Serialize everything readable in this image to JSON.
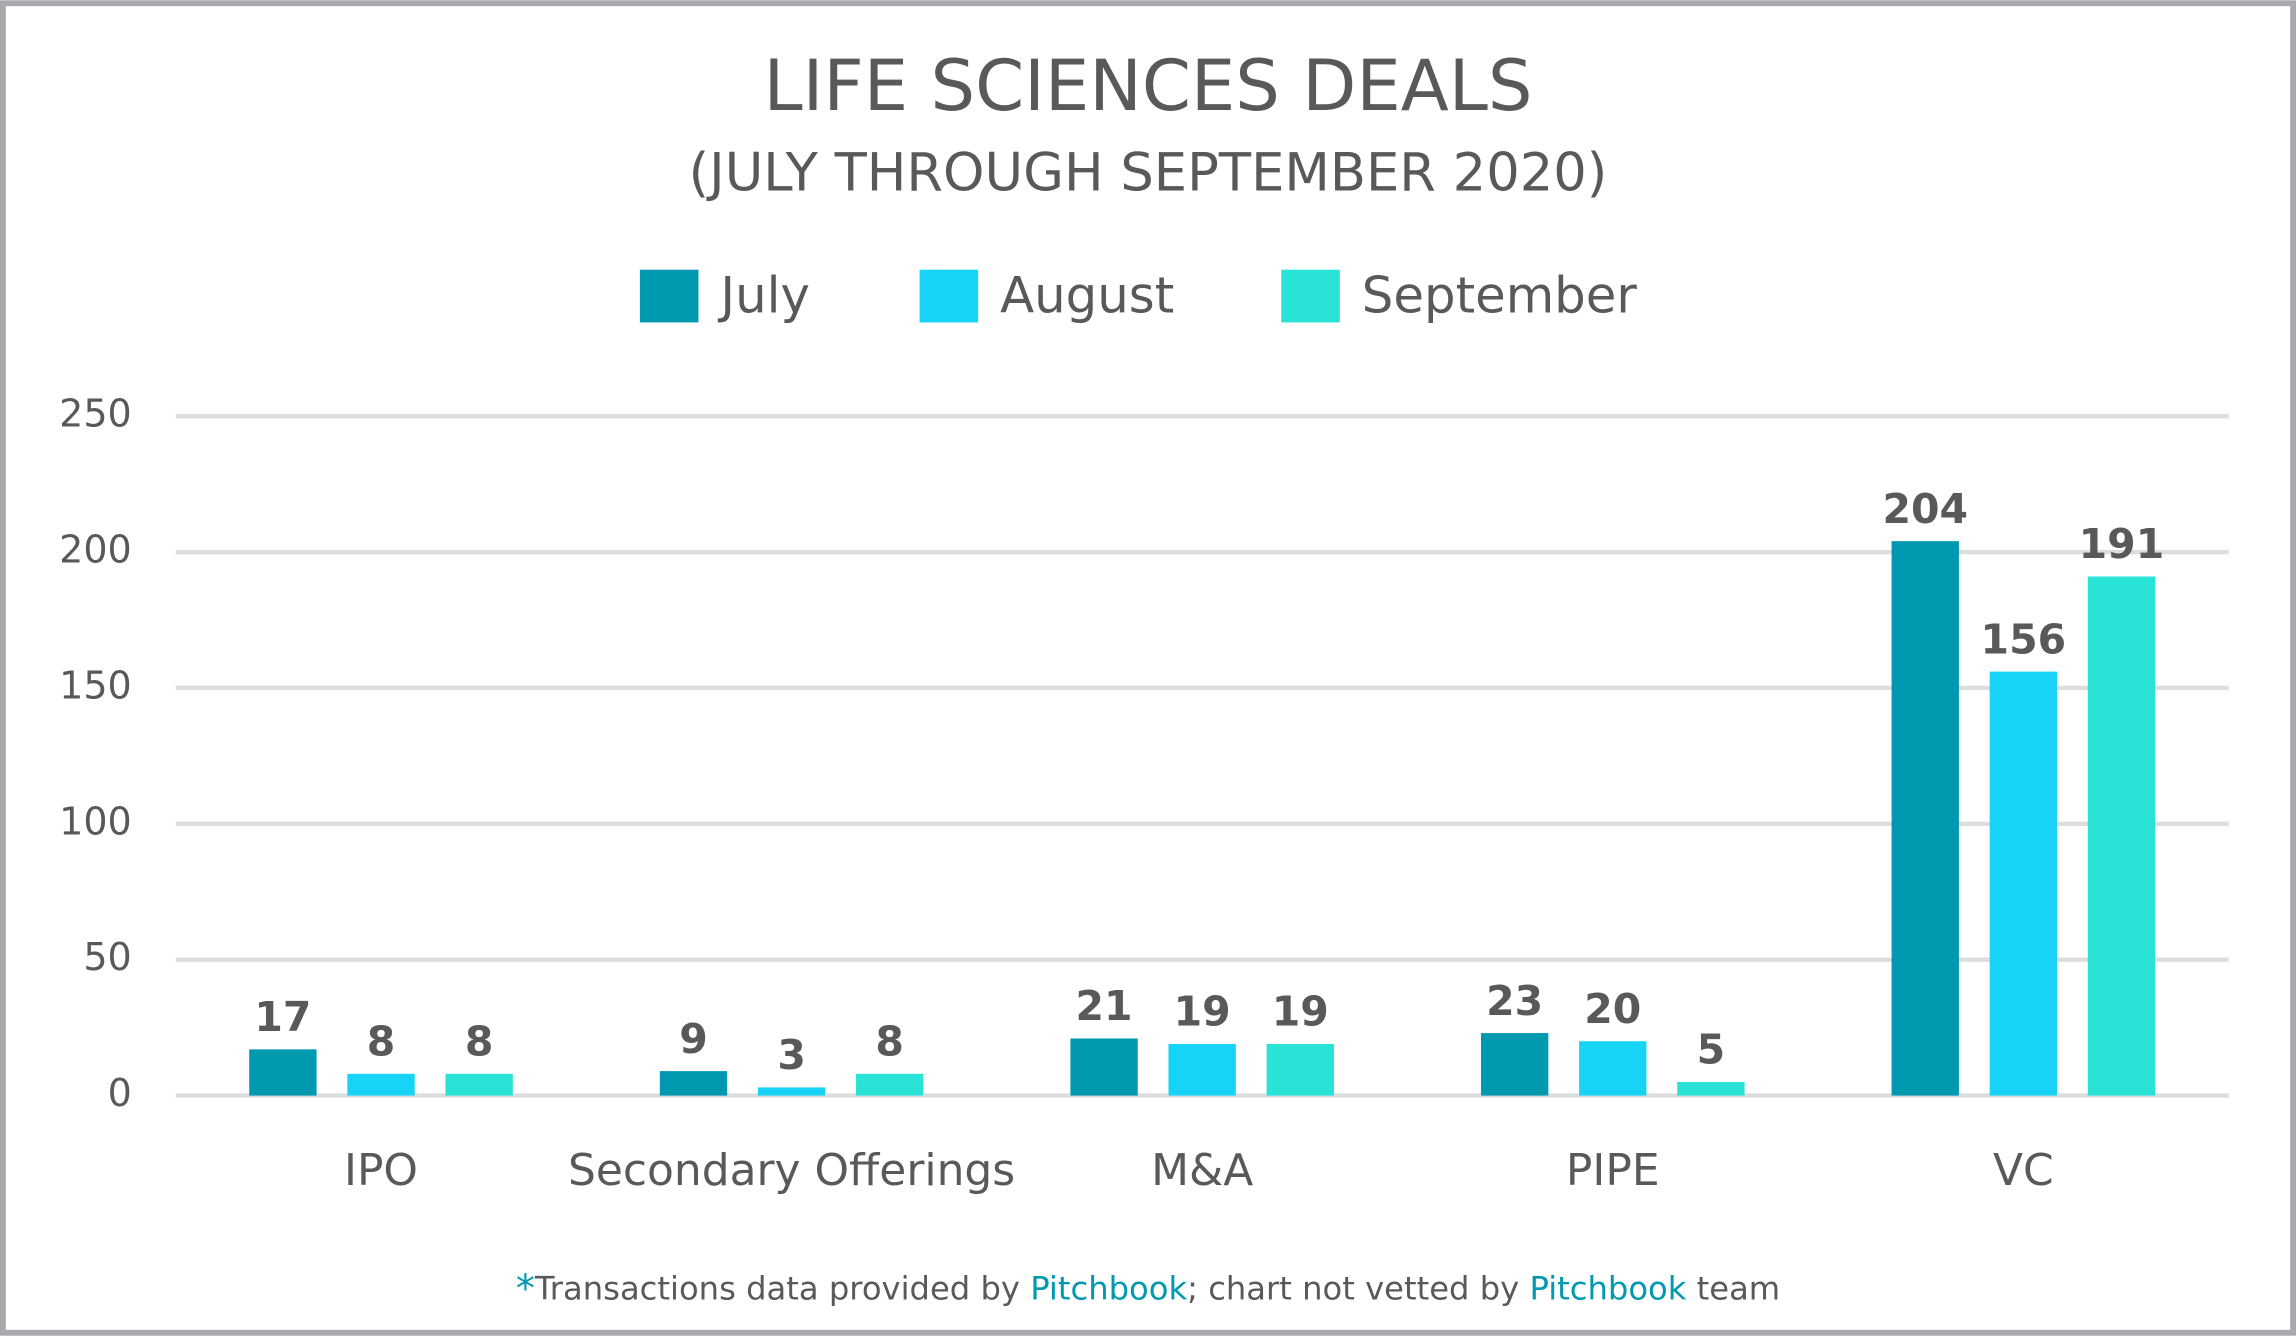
{
  "chart_data": {
    "type": "bar",
    "title": "LIFE SCIENCES DEALS",
    "subtitle": "(JULY THROUGH SEPTEMBER 2020)",
    "categories": [
      "IPO",
      "Secondary Offerings",
      "M&A",
      "PIPE",
      "VC"
    ],
    "series": [
      {
        "name": "July",
        "color": "#0099b0",
        "values": [
          17,
          9,
          21,
          23,
          204
        ]
      },
      {
        "name": "August",
        "color": "#17d4f7",
        "values": [
          8,
          3,
          19,
          20,
          156
        ]
      },
      {
        "name": "September",
        "color": "#29e3d6",
        "values": [
          8,
          8,
          19,
          5,
          191
        ]
      }
    ],
    "ylim": [
      0,
      250
    ],
    "yticks": [
      0,
      50,
      100,
      150,
      200,
      250
    ],
    "grid": true,
    "legend": "top",
    "footnote": [
      "*",
      "Transactions data provided by ",
      "Pitchbook",
      "; chart not vetted by ",
      "Pitchbook",
      " team"
    ]
  }
}
